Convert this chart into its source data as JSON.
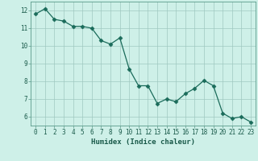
{
  "x": [
    0,
    1,
    2,
    3,
    4,
    5,
    6,
    7,
    8,
    9,
    10,
    11,
    12,
    13,
    14,
    15,
    16,
    17,
    18,
    19,
    20,
    21,
    22,
    23
  ],
  "y": [
    11.8,
    12.1,
    11.5,
    11.4,
    11.1,
    11.1,
    11.0,
    10.3,
    10.1,
    10.45,
    8.7,
    7.75,
    7.75,
    6.75,
    7.0,
    6.85,
    7.3,
    7.6,
    8.05,
    7.75,
    6.2,
    5.9,
    6.0,
    5.7
  ],
  "line_color": "#1a6b5a",
  "marker": "D",
  "marker_size": 2.5,
  "bg_color": "#cef0e8",
  "grid_color": "#a0c8c0",
  "xlabel": "Humidex (Indice chaleur)",
  "xlim": [
    -0.5,
    23.5
  ],
  "ylim": [
    5.5,
    12.5
  ],
  "yticks": [
    6,
    7,
    8,
    9,
    10,
    11,
    12
  ],
  "xtick_labels": [
    "0",
    "1",
    "2",
    "3",
    "4",
    "5",
    "6",
    "7",
    "8",
    "9",
    "10",
    "11",
    "12",
    "13",
    "14",
    "15",
    "16",
    "17",
    "18",
    "19",
    "20",
    "21",
    "22",
    "23"
  ],
  "axis_fontsize": 6.5,
  "tick_fontsize": 5.5
}
